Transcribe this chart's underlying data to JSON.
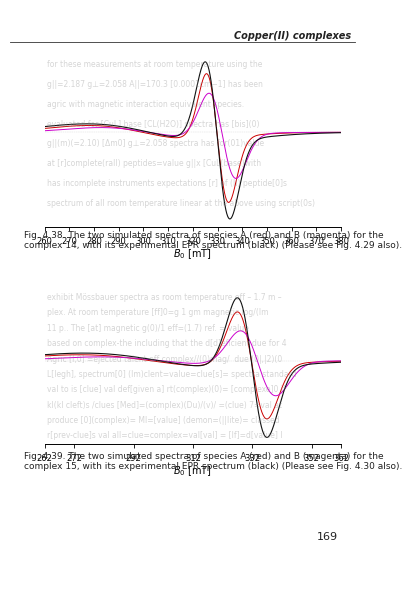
{
  "page_bg": "#ffffff",
  "header_text": "Copper(II) complexes",
  "header_fontsize": 7,
  "page_number": "169",
  "page_number_fontsize": 8,
  "plot1": {
    "xlim": [
      260,
      380
    ],
    "xticks": [
      260,
      270,
      280,
      290,
      300,
      310,
      320,
      330,
      340,
      350,
      360,
      370,
      380
    ],
    "xlabel": "$B_0$ [mT]",
    "caption": "Fig. 4.38. The two simulated spectra of species A (red) and B (magenta) for the\ncomplex 14, with its experimental EPR spectrum (black) (Please see Fig. 4.29 also).",
    "caption_fontsize": 6.5
  },
  "plot2": {
    "xlim": [
      262,
      362
    ],
    "xticks": [
      262,
      272,
      292,
      312,
      332,
      352,
      362
    ],
    "xtick_labels": [
      "262",
      "272",
      "292",
      "312",
      "332",
      "352",
      "362"
    ],
    "xlabel": "$B_0$ [mT]",
    "caption": "Fig. 4.39. The two simulated spectra of species A (red) and B (magenta) for the\ncomplex 15, with its experimental EPR spectrum (black) (Please see Fig. 4.30 also).",
    "caption_fontsize": 6.5
  },
  "body_text_color": "#888888",
  "body_text_alpha": 0.35,
  "body_text_fontsize": 5.5,
  "col_black": "#111111",
  "col_red": "#cc0000",
  "col_magenta": "#cc00cc"
}
